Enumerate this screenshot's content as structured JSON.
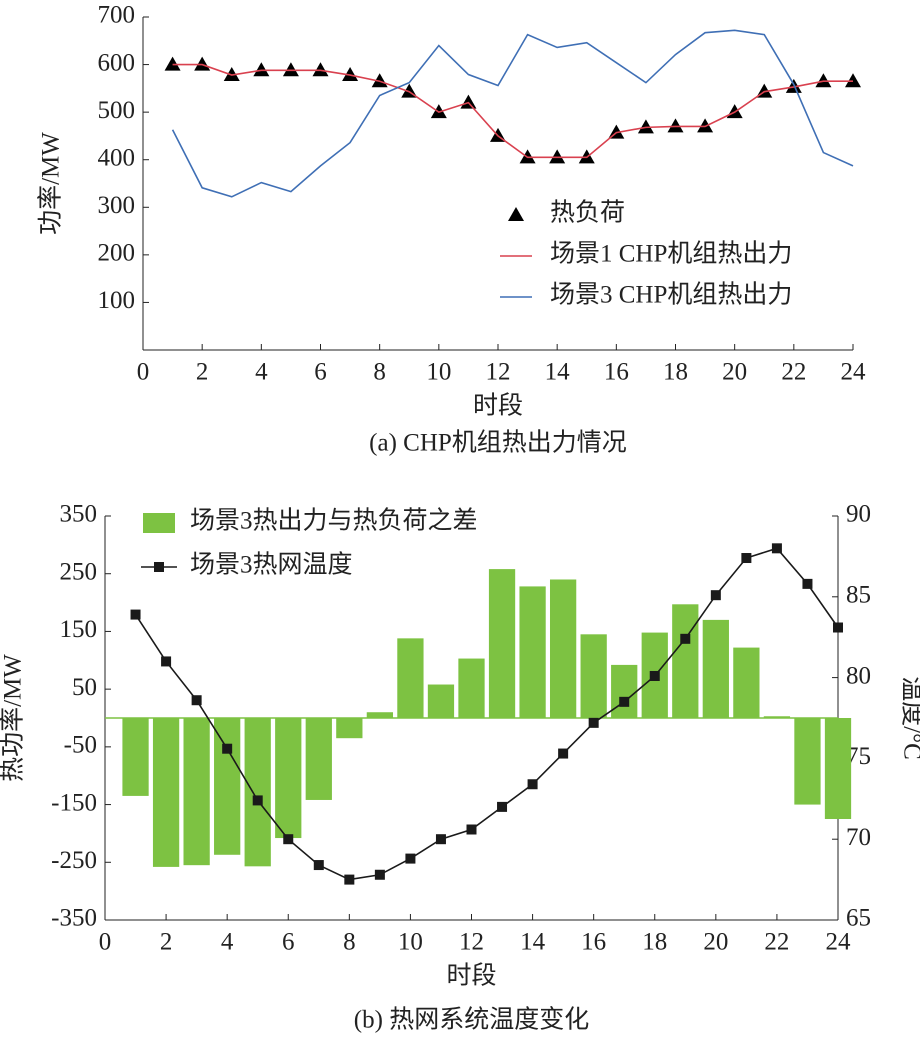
{
  "chart_data": [
    {
      "type": "line",
      "title": "(a) CHP机组热出力情况",
      "xlabel": "时段",
      "ylabel": "功率/MW",
      "x": [
        1,
        2,
        3,
        4,
        5,
        6,
        7,
        8,
        9,
        10,
        11,
        12,
        13,
        14,
        15,
        16,
        17,
        18,
        19,
        20,
        21,
        22,
        23,
        24
      ],
      "xlim": [
        0,
        24
      ],
      "xticks": [
        0,
        2,
        4,
        6,
        8,
        10,
        12,
        14,
        16,
        18,
        20,
        22,
        24
      ],
      "ylim": [
        0,
        700
      ],
      "yticks": [
        100,
        200,
        300,
        400,
        500,
        600,
        700
      ],
      "series": [
        {
          "name": "热负荷",
          "color": "#000000",
          "marker": "triangle",
          "line": false,
          "values": [
            600,
            600,
            578,
            588,
            588,
            588,
            578,
            565,
            543,
            500,
            520,
            450,
            405,
            405,
            405,
            457,
            468,
            470,
            470,
            500,
            543,
            553,
            565,
            565
          ]
        },
        {
          "name": "场景1 CHP机组热出力",
          "color": "#d9414f",
          "marker": "none",
          "line": true,
          "values": [
            600,
            600,
            578,
            588,
            588,
            588,
            578,
            565,
            543,
            500,
            520,
            450,
            405,
            405,
            405,
            457,
            468,
            470,
            470,
            500,
            543,
            553,
            565,
            565
          ]
        },
        {
          "name": "场景3 CHP机组热出力",
          "color": "#3f6fb5",
          "marker": "none",
          "line": true,
          "values": [
            463,
            341,
            322,
            352,
            333,
            387,
            436,
            535,
            562,
            640,
            579,
            556,
            663,
            636,
            646,
            604,
            562,
            621,
            667,
            672,
            663,
            558,
            415,
            387
          ]
        }
      ]
    },
    {
      "type": "bar_line",
      "title": "(b) 热网系统温度变化",
      "xlabel": "时段",
      "ylabel": "热功率/MW",
      "y2label": "温度/°C",
      "x": [
        1,
        2,
        3,
        4,
        5,
        6,
        7,
        8,
        9,
        10,
        11,
        12,
        13,
        14,
        15,
        16,
        17,
        18,
        19,
        20,
        21,
        22,
        23,
        24
      ],
      "xlim": [
        0,
        24
      ],
      "xticks": [
        0,
        2,
        4,
        6,
        8,
        10,
        12,
        14,
        16,
        18,
        20,
        22,
        24
      ],
      "ylim": [
        -350,
        350
      ],
      "yticks": [
        -350,
        -250,
        -150,
        -50,
        50,
        150,
        250,
        350
      ],
      "y2lim": [
        65,
        90
      ],
      "y2ticks": [
        65,
        70,
        75,
        80,
        85,
        90
      ],
      "series": [
        {
          "name": "场景3热出力与热负荷之差",
          "color": "#7dc242",
          "kind": "bar",
          "values": [
            -135,
            -258,
            -255,
            -237,
            -257,
            -208,
            -142,
            -35,
            10,
            138,
            58,
            103,
            258,
            228,
            240,
            145,
            92,
            148,
            197,
            170,
            122,
            3,
            -150,
            -175
          ]
        },
        {
          "name": "场景3热网温度",
          "color": "#1a1a1a",
          "kind": "line",
          "marker": "square",
          "axis": "y2",
          "values": [
            83.9,
            81.0,
            78.6,
            75.6,
            72.4,
            70.0,
            68.4,
            67.5,
            67.8,
            68.8,
            70.0,
            70.6,
            72.0,
            73.4,
            75.3,
            77.2,
            78.5,
            80.1,
            82.4,
            85.1,
            87.4,
            88.0,
            85.8,
            83.1
          ]
        }
      ]
    }
  ]
}
